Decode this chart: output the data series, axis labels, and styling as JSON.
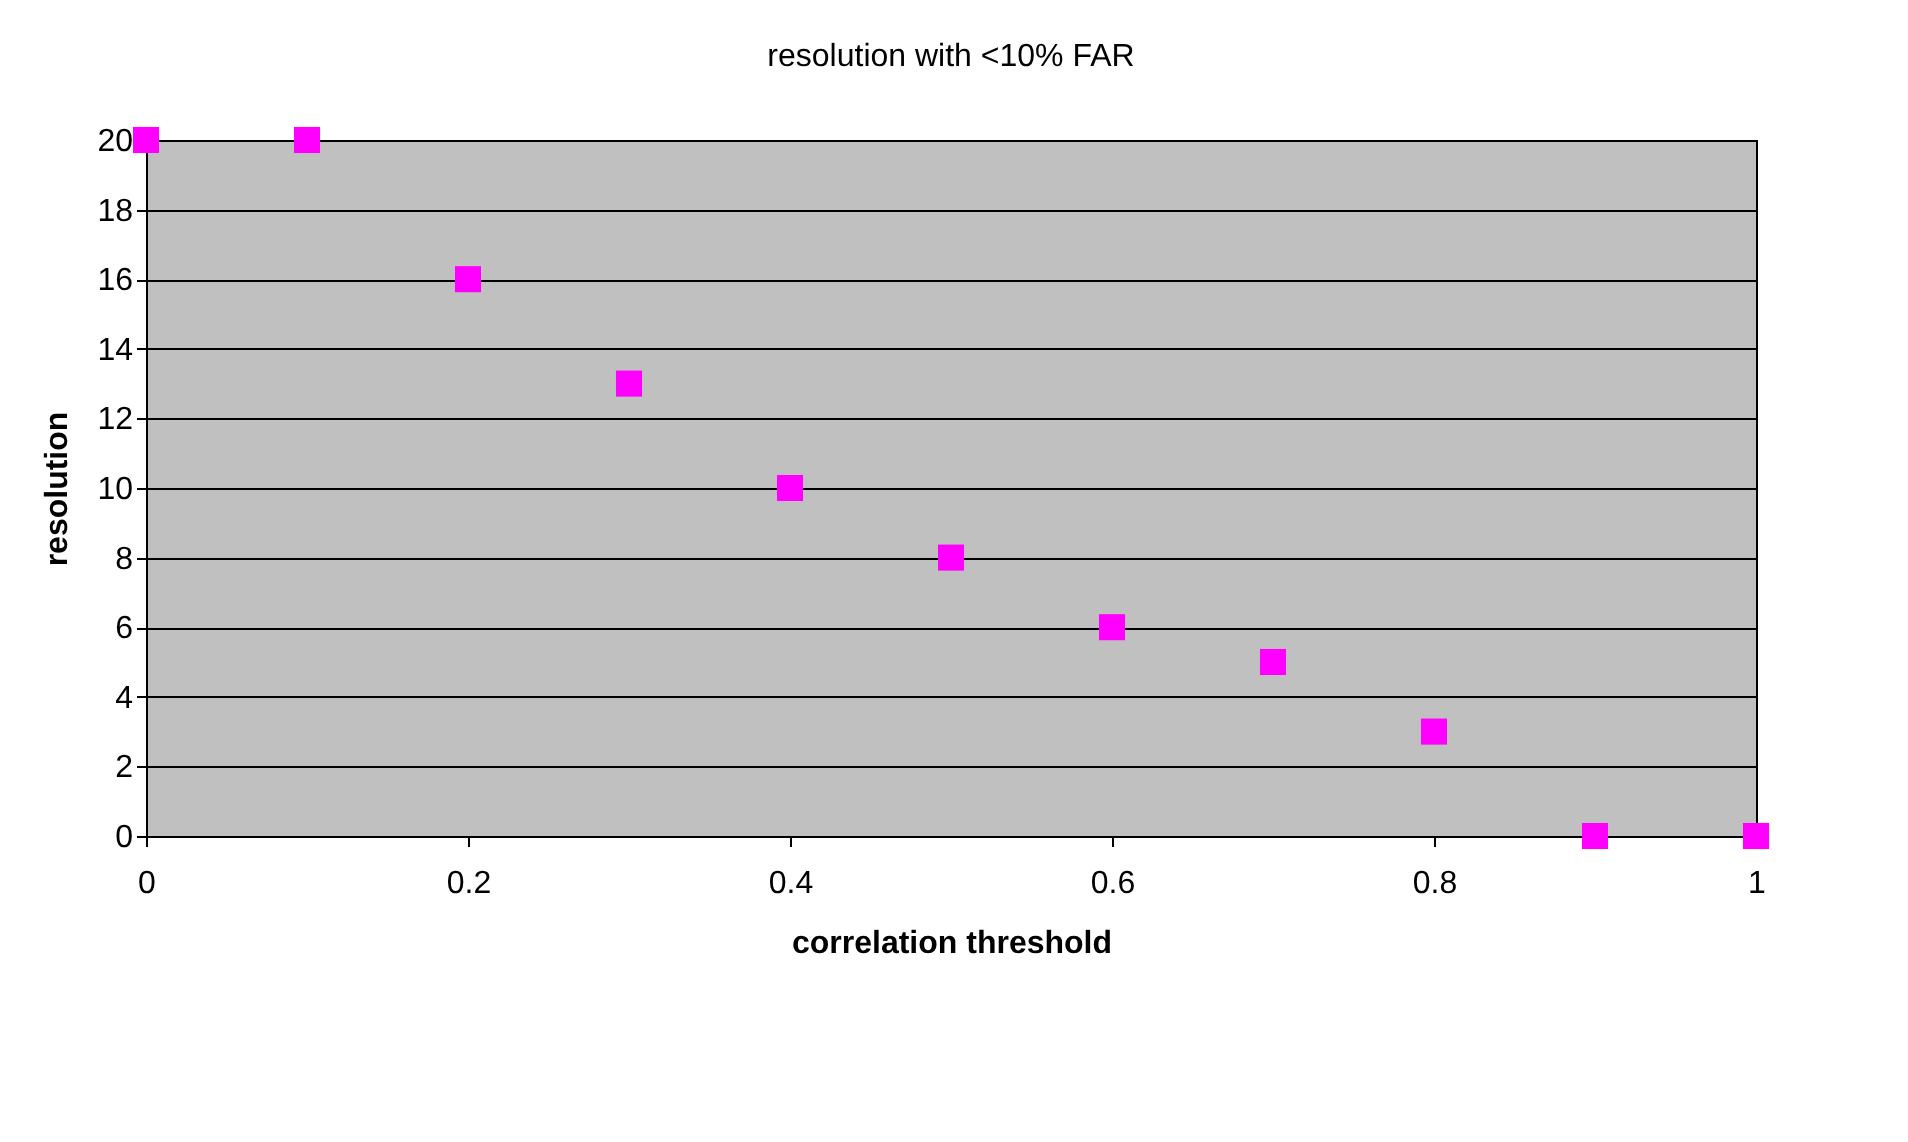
{
  "chart_data": {
    "type": "scatter",
    "title": "resolution with <10% FAR",
    "xlabel": "correlation threshold",
    "ylabel": "resolution",
    "x": [
      0,
      0.1,
      0.2,
      0.3,
      0.4,
      0.5,
      0.6,
      0.7,
      0.8,
      0.9,
      1
    ],
    "series": [
      {
        "color": "#ff00ff",
        "values": [
          20,
          20,
          16,
          13,
          10,
          8,
          6,
          5,
          3,
          0,
          0
        ]
      }
    ],
    "xlim": [
      0,
      1
    ],
    "xticks": [
      0,
      0.2,
      0.4,
      0.6,
      0.8,
      1
    ],
    "ylim": [
      0,
      20
    ],
    "yticks": [
      0,
      2,
      4,
      6,
      8,
      10,
      12,
      14,
      16,
      18,
      20
    ],
    "grid": "y",
    "marker": "square",
    "legend": false
  }
}
